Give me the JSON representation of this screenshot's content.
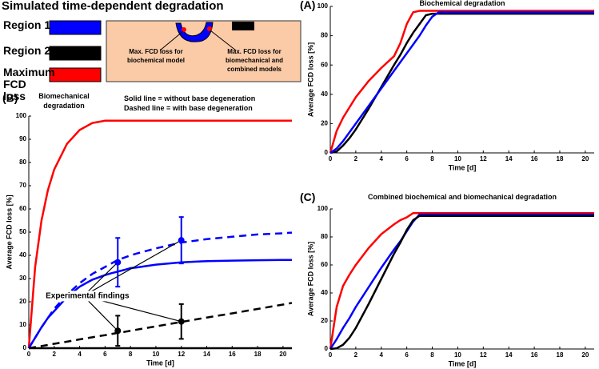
{
  "header": {
    "title": "Simulated time-dependent degradation"
  },
  "legend": {
    "entries": [
      {
        "label": "Region 1",
        "color": "#0000ff"
      },
      {
        "label": "Region 2",
        "color": "#000000"
      },
      {
        "label": "Maximum FCD loss",
        "color": "#ff0000"
      }
    ]
  },
  "schematic": {
    "labels": [
      "Max. FCD loss for biochemical model",
      "Max. FCD loss for biomechanical and combined models"
    ]
  },
  "chart_data": [
    {
      "type": "line",
      "panel": "(B)",
      "title": "Biomechanical degradation",
      "notes": [
        "Solid line = without base degeneration",
        "Dashed line = with base degeneration"
      ],
      "annotation": "Experimental findings",
      "x_label": "Time [d]",
      "y_label": "Average FCD loss [%]",
      "xlim": [
        0,
        20.7
      ],
      "ylim": [
        0,
        100
      ],
      "xticks": [
        0,
        2,
        4,
        6,
        8,
        10,
        12,
        14,
        16,
        18,
        20
      ],
      "yticks": [
        0,
        10,
        20,
        30,
        40,
        50,
        60,
        70,
        80,
        90,
        100
      ],
      "x": [
        0,
        0.5,
        1,
        1.5,
        2,
        3,
        4,
        5,
        5.5,
        6,
        6.5,
        7,
        7.5,
        8,
        8.5,
        10,
        12,
        14,
        16,
        18,
        20,
        20.7
      ],
      "series": [
        {
          "color": "#ff0000",
          "dash": false,
          "values": [
            0,
            35,
            55,
            68,
            77,
            88,
            94,
            97,
            97.5,
            98,
            98,
            98,
            98,
            98,
            98,
            98,
            98,
            98,
            98,
            98,
            98,
            98
          ]
        },
        {
          "color": "#0000ff",
          "dash": false,
          "values": [
            0,
            4.5,
            9,
            13,
            16,
            22,
            26.5,
            29.5,
            30.5,
            31.5,
            32.3,
            33,
            33.7,
            34.5,
            34.8,
            36,
            37,
            37.5,
            37.7,
            37.9,
            38,
            38
          ]
        },
        {
          "color": "#0000ff",
          "dash": true,
          "values": [
            0,
            4.5,
            9,
            13,
            17,
            23,
            28,
            32,
            33.5,
            35,
            36.5,
            38,
            39,
            40,
            40.8,
            43,
            45.5,
            47,
            48,
            49,
            49.5,
            49.8
          ]
        },
        {
          "color": "#000000",
          "dash": false,
          "values": [
            0,
            0,
            0,
            0,
            0,
            0,
            0,
            0,
            0,
            0,
            0,
            0,
            0,
            0,
            0,
            0,
            0,
            0,
            0,
            0,
            0,
            0
          ]
        },
        {
          "color": "#000000",
          "dash": true,
          "values": [
            0,
            0.5,
            0.9,
            1.4,
            1.9,
            2.8,
            3.8,
            4.7,
            5.2,
            5.6,
            6.1,
            6.6,
            7,
            7.5,
            8,
            9.4,
            11.3,
            13.2,
            15,
            16.9,
            18.8,
            19.5
          ]
        }
      ],
      "points": [
        {
          "x": 7,
          "y": 37,
          "error": 10.5,
          "color": "#0000ff"
        },
        {
          "x": 12,
          "y": 46.5,
          "error": 10,
          "color": "#0000ff"
        },
        {
          "x": 7,
          "y": 7.5,
          "error": 6.5,
          "color": "#000000"
        },
        {
          "x": 12,
          "y": 11.5,
          "error": 7.5,
          "color": "#000000"
        }
      ]
    },
    {
      "type": "line",
      "panel": "(A)",
      "title": "Biochemical degradation",
      "x_label": "Time [d]",
      "y_label": "Average FCD loss [%]",
      "xlim": [
        0,
        20.7
      ],
      "ylim": [
        0,
        100
      ],
      "xticks": [
        0,
        2,
        4,
        6,
        8,
        10,
        12,
        14,
        16,
        18,
        20
      ],
      "yticks": [
        0,
        20,
        40,
        60,
        80,
        100
      ],
      "x": [
        0,
        0.5,
        1,
        1.5,
        2,
        3,
        4,
        5,
        5.5,
        6,
        6.5,
        7,
        7.5,
        8,
        8.5,
        10,
        12,
        14,
        16,
        18,
        20,
        20.7
      ],
      "series": [
        {
          "color": "#ff0000",
          "dash": false,
          "values": [
            0,
            15,
            24,
            31,
            38,
            49,
            58,
            66,
            75,
            88,
            96,
            97,
            97,
            97,
            97,
            97,
            97,
            97,
            97,
            97,
            97,
            97
          ]
        },
        {
          "color": "#000000",
          "dash": false,
          "values": [
            0,
            1,
            5,
            10,
            16,
            30,
            45,
            60,
            67,
            75,
            82,
            88,
            94,
            95,
            95,
            95,
            95,
            95,
            95,
            95,
            95,
            95
          ]
        },
        {
          "color": "#0000ff",
          "dash": false,
          "values": [
            0,
            3,
            8,
            14,
            20,
            32,
            44,
            56,
            62,
            68,
            74,
            80,
            87,
            93,
            96,
            96,
            96,
            96,
            96,
            96,
            96,
            96
          ]
        }
      ]
    },
    {
      "type": "line",
      "panel": "(C)",
      "title": "Combined biochemical and biomechanical degradation",
      "x_label": "Time [d]",
      "y_label": "Average FCD loss [%]",
      "xlim": [
        0,
        20.7
      ],
      "ylim": [
        0,
        100
      ],
      "xticks": [
        0,
        2,
        4,
        6,
        8,
        10,
        12,
        14,
        16,
        18,
        20
      ],
      "yticks": [
        0,
        20,
        40,
        60,
        80,
        100
      ],
      "x": [
        0,
        0.5,
        1,
        1.5,
        2,
        3,
        4,
        5,
        5.5,
        6,
        6.5,
        7,
        7.5,
        8,
        8.5,
        10,
        12,
        14,
        16,
        18,
        20,
        20.7
      ],
      "series": [
        {
          "color": "#ff0000",
          "dash": false,
          "values": [
            0,
            30,
            45,
            53,
            60,
            72,
            82,
            89,
            92,
            94,
            97,
            97,
            97,
            97,
            97,
            97,
            97,
            97,
            97,
            97,
            97,
            97
          ]
        },
        {
          "color": "#0000ff",
          "dash": false,
          "values": [
            0,
            7,
            15,
            22,
            30,
            44,
            58,
            71,
            77,
            84,
            91,
            96,
            96,
            96,
            96,
            96,
            96,
            96,
            96,
            96,
            96,
            96
          ]
        },
        {
          "color": "#000000",
          "dash": false,
          "values": [
            0,
            0.5,
            3,
            8,
            15,
            32,
            50,
            68,
            76,
            85,
            92,
            95,
            95,
            95,
            95,
            95,
            95,
            95,
            95,
            95,
            95,
            95
          ]
        }
      ]
    }
  ]
}
